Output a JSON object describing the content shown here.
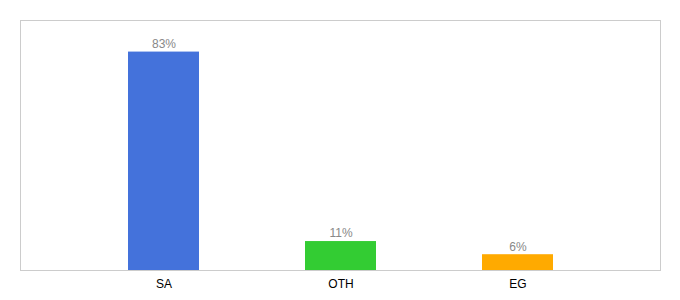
{
  "chart_data": {
    "type": "bar",
    "categories": [
      "SA",
      "OTH",
      "EG"
    ],
    "values": [
      83,
      11,
      6
    ],
    "value_labels": [
      "83%",
      "11%",
      "6%"
    ],
    "data_labels": true,
    "colors": [
      "#4472db",
      "#33cc33",
      "#ffaa00"
    ],
    "ylim": [
      0,
      95
    ],
    "tick_labels": "x"
  }
}
